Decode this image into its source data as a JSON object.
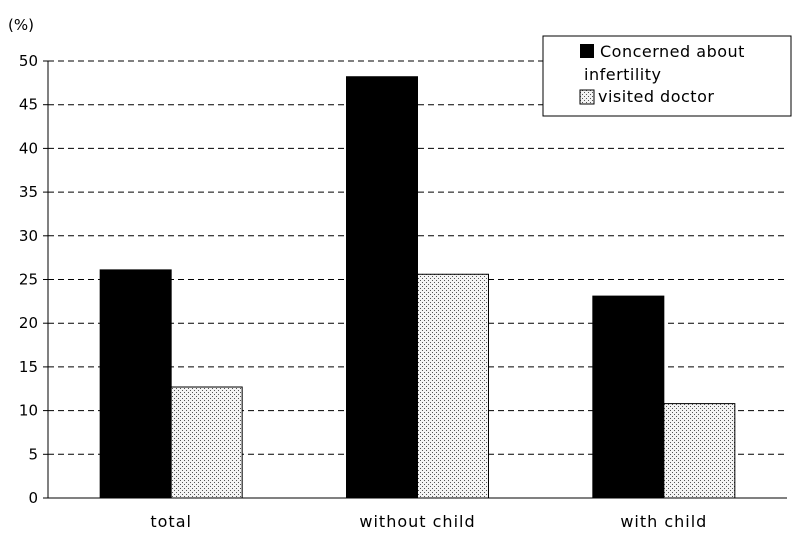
{
  "chart_data": {
    "type": "bar",
    "y_unit_label": "(%)",
    "categories": [
      "total",
      "without child",
      "with child"
    ],
    "series": [
      {
        "name": "Concerned about infertility",
        "values": [
          26.1,
          48.2,
          23.1
        ],
        "color": "#000000"
      },
      {
        "name": "visited doctor",
        "values": [
          12.7,
          25.6,
          10.8
        ],
        "color": "#f2f2f2"
      }
    ],
    "ylim": [
      0,
      50
    ],
    "yticks": [
      0,
      5,
      10,
      15,
      20,
      25,
      30,
      35,
      40,
      45,
      50
    ],
    "grid": "horizontal-dashed",
    "legend_position": "top-right",
    "legend_lines": [
      [
        "Concerned about",
        "infertility"
      ],
      [
        "visited doctor"
      ]
    ]
  }
}
